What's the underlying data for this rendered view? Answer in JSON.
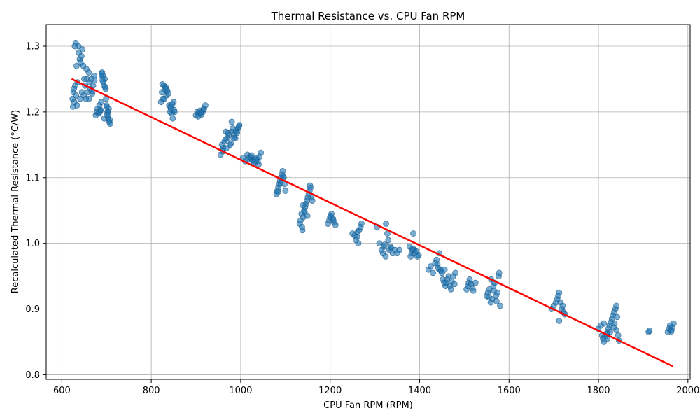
{
  "chart_data": {
    "type": "scatter",
    "title": "Thermal Resistance vs. CPU Fan RPM",
    "xlabel": "CPU Fan RPM (RPM)",
    "ylabel": "Recalculated Thermal Resistance (°C/W)",
    "xlim": [
      565,
      2005
    ],
    "ylim": [
      0.793,
      1.333
    ],
    "xticks": [
      600,
      800,
      1000,
      1200,
      1400,
      1600,
      1800,
      2000
    ],
    "yticks": [
      0.8,
      0.9,
      1.0,
      1.1,
      1.2,
      1.3
    ],
    "xtick_labels": [
      "600",
      "800",
      "1000",
      "1200",
      "1400",
      "1600",
      "1800",
      "2000"
    ],
    "ytick_labels": [
      "0.8",
      "0.9",
      "1.0",
      "1.1",
      "1.2",
      "1.3"
    ],
    "grid": true,
    "point_color": "#1f77b4",
    "fit_color": "#ff0000",
    "series": [
      {
        "kind": "points",
        "x": [
          624,
          626,
          628,
          630,
          632,
          634,
          629,
          631,
          633,
          625,
          627,
          635,
          638,
          640,
          642,
          644,
          646,
          648,
          650,
          637,
          641,
          645,
          649,
          652,
          654,
          656,
          658,
          660,
          662,
          664,
          666,
          668,
          670,
          672,
          655,
          661,
          667,
          673,
          676,
          678,
          680,
          682,
          684,
          686,
          688,
          690,
          692,
          694,
          696,
          698,
          700,
          702,
          704,
          706,
          708,
          685,
          689,
          693,
          697,
          701,
          705,
          689,
          691,
          695,
          699,
          703,
          707,
          687,
          700,
          704,
          822,
          824,
          826,
          828,
          830,
          832,
          834,
          836,
          838,
          840,
          842,
          844,
          846,
          848,
          850,
          852,
          825,
          829,
          833,
          843,
          847,
          851,
          900,
          903,
          906,
          909,
          912,
          915,
          918,
          921,
          905,
          911,
          917,
          955,
          958,
          961,
          964,
          967,
          970,
          973,
          976,
          979,
          982,
          985,
          988,
          991,
          994,
          997,
          960,
          966,
          972,
          978,
          984,
          990,
          996,
          968,
          980,
          992,
          1005,
          1010,
          1015,
          1018,
          1020,
          1022,
          1025,
          1028,
          1030,
          1032,
          1035,
          1038,
          1040,
          1042,
          1045,
          1024,
          1034,
          1080,
          1082,
          1084,
          1086,
          1088,
          1090,
          1092,
          1094,
          1096,
          1098,
          1100,
          1083,
          1089,
          1095,
          1132,
          1134,
          1136,
          1138,
          1140,
          1142,
          1144,
          1146,
          1148,
          1150,
          1152,
          1154,
          1156,
          1158,
          1160,
          1137,
          1143,
          1149,
          1155,
          1139,
          1195,
          1198,
          1200,
          1203,
          1206,
          1209,
          1212,
          1201,
          1207,
          1250,
          1255,
          1258,
          1260,
          1262,
          1265,
          1268,
          1270,
          1263,
          1305,
          1310,
          1315,
          1318,
          1320,
          1322,
          1325,
          1328,
          1330,
          1332,
          1335,
          1340,
          1345,
          1350,
          1355,
          1324,
          1336,
          1378,
          1380,
          1382,
          1384,
          1386,
          1388,
          1390,
          1392,
          1395,
          1398,
          1385,
          1420,
          1425,
          1430,
          1435,
          1438,
          1440,
          1442,
          1445,
          1448,
          1450,
          1452,
          1455,
          1458,
          1460,
          1462,
          1465,
          1468,
          1470,
          1472,
          1475,
          1478,
          1480,
          1444,
          1456,
          1505,
          1508,
          1510,
          1512,
          1515,
          1518,
          1520,
          1525,
          1550,
          1553,
          1556,
          1559,
          1562,
          1565,
          1568,
          1571,
          1574,
          1577,
          1580,
          1560,
          1566,
          1572,
          1578,
          1555,
          1695,
          1700,
          1705,
          1708,
          1710,
          1712,
          1715,
          1718,
          1720,
          1722,
          1725,
          1712,
          1800,
          1805,
          1808,
          1810,
          1812,
          1815,
          1818,
          1820,
          1822,
          1825,
          1828,
          1830,
          1832,
          1835,
          1838,
          1840,
          1842,
          1844,
          1846,
          1826,
          1834,
          1812,
          1840,
          1820,
          1836,
          1912,
          1914,
          1955,
          1958,
          1960,
          1962,
          1965,
          1968,
          1963
        ],
        "y": [
          1.22,
          1.23,
          1.215,
          1.24,
          1.225,
          1.21,
          1.3,
          1.305,
          1.27,
          1.208,
          1.235,
          1.245,
          1.29,
          1.28,
          1.275,
          1.285,
          1.295,
          1.27,
          1.25,
          1.3,
          1.22,
          1.23,
          1.225,
          1.24,
          1.22,
          1.25,
          1.23,
          1.26,
          1.245,
          1.235,
          1.25,
          1.228,
          1.24,
          1.255,
          1.265,
          1.22,
          1.232,
          1.248,
          1.195,
          1.2,
          1.205,
          1.198,
          1.21,
          1.202,
          1.215,
          1.26,
          1.255,
          1.24,
          1.25,
          1.235,
          1.21,
          1.2,
          1.19,
          1.185,
          1.182,
          1.2,
          1.258,
          1.245,
          1.238,
          1.195,
          1.205,
          1.255,
          1.248,
          1.19,
          1.22,
          1.2,
          1.188,
          1.203,
          1.208,
          1.196,
          1.215,
          1.23,
          1.22,
          1.24,
          1.235,
          1.238,
          1.225,
          1.232,
          1.228,
          1.21,
          1.2,
          1.205,
          1.198,
          1.19,
          1.215,
          1.2,
          1.242,
          1.22,
          1.235,
          1.208,
          1.212,
          1.203,
          1.195,
          1.2,
          1.198,
          1.202,
          1.196,
          1.2,
          1.205,
          1.21,
          1.193,
          1.199,
          1.204,
          1.135,
          1.15,
          1.145,
          1.155,
          1.17,
          1.16,
          1.165,
          1.15,
          1.17,
          1.175,
          1.165,
          1.16,
          1.17,
          1.175,
          1.18,
          1.14,
          1.158,
          1.168,
          1.152,
          1.16,
          1.172,
          1.178,
          1.145,
          1.185,
          1.168,
          1.13,
          1.125,
          1.135,
          1.128,
          1.132,
          1.13,
          1.127,
          1.125,
          1.122,
          1.128,
          1.13,
          1.125,
          1.12,
          1.132,
          1.138,
          1.134,
          1.126,
          1.075,
          1.08,
          1.085,
          1.09,
          1.095,
          1.1,
          1.105,
          1.11,
          1.1,
          1.09,
          1.08,
          1.078,
          1.092,
          1.102,
          1.03,
          1.035,
          1.045,
          1.02,
          1.04,
          1.05,
          1.055,
          1.06,
          1.065,
          1.07,
          1.075,
          1.08,
          1.085,
          1.07,
          1.065,
          1.025,
          1.048,
          1.042,
          1.088,
          1.058,
          1.03,
          1.035,
          1.04,
          1.045,
          1.038,
          1.032,
          1.028,
          1.042,
          1.036,
          1.015,
          1.012,
          1.005,
          1.01,
          1.018,
          1.02,
          1.025,
          1.03,
          1.0,
          1.025,
          1.0,
          0.99,
          0.985,
          0.995,
          0.998,
          1.03,
          1.015,
          1.005,
          0.99,
          0.995,
          0.985,
          0.99,
          0.985,
          0.99,
          0.98,
          0.993,
          0.995,
          0.98,
          0.985,
          0.99,
          1.015,
          0.99,
          0.985,
          0.988,
          0.98,
          0.982,
          0.992,
          0.96,
          0.965,
          0.955,
          0.97,
          0.975,
          0.968,
          0.962,
          0.96,
          0.958,
          0.955,
          0.945,
          0.94,
          0.935,
          0.94,
          0.945,
          0.95,
          0.935,
          0.93,
          0.942,
          0.95,
          0.938,
          0.955,
          0.985,
          0.96,
          0.93,
          0.935,
          0.94,
          0.945,
          0.938,
          0.932,
          0.928,
          0.94,
          0.92,
          0.925,
          0.93,
          0.91,
          0.915,
          0.935,
          0.94,
          0.92,
          0.925,
          0.95,
          0.905,
          0.945,
          0.928,
          0.912,
          0.955,
          0.918,
          0.9,
          0.905,
          0.91,
          0.915,
          0.92,
          0.925,
          0.91,
          0.9,
          0.905,
          0.895,
          0.892,
          0.882,
          0.87,
          0.875,
          0.86,
          0.855,
          0.85,
          0.858,
          0.862,
          0.865,
          0.87,
          0.875,
          0.88,
          0.885,
          0.89,
          0.895,
          0.9,
          0.905,
          0.888,
          0.86,
          0.852,
          0.865,
          0.872,
          0.878,
          0.868,
          0.855,
          0.878,
          0.865,
          0.867,
          0.865,
          0.87,
          0.875,
          0.868,
          0.872,
          0.878,
          0.866
        ]
      },
      {
        "kind": "fit_line",
        "x": [
          622,
          1966
        ],
        "y": [
          1.25,
          0.813
        ]
      }
    ]
  }
}
